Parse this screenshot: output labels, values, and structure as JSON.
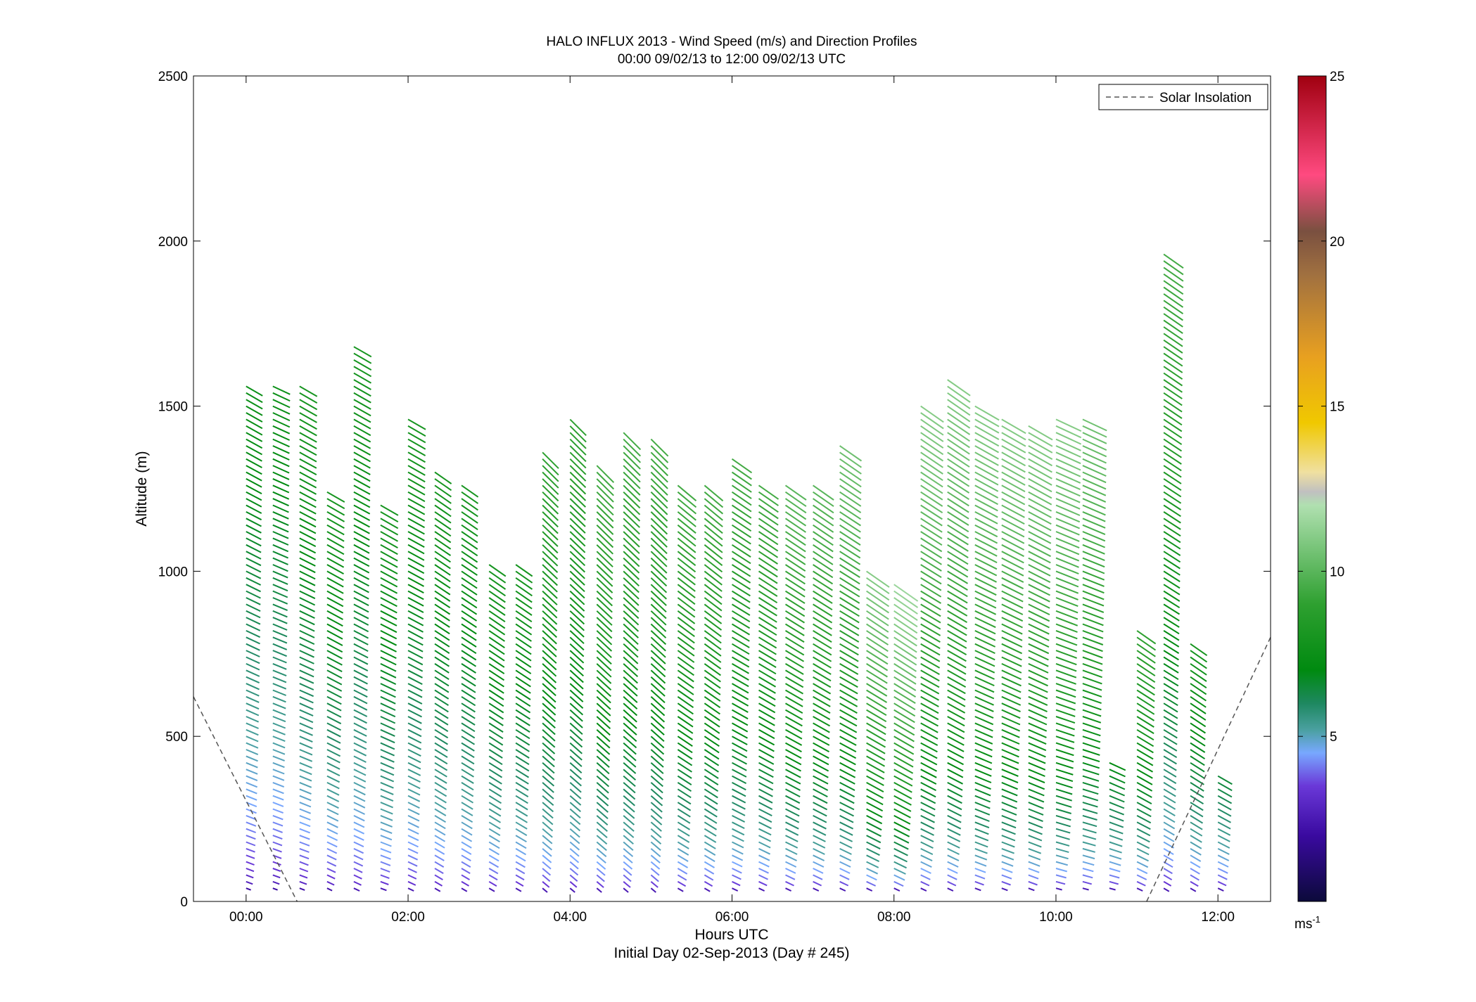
{
  "chart_data": {
    "type": "quiver",
    "title": "HALO INFLUX 2013 - Wind Speed (m/s) and Direction Profiles",
    "subtitle": "00:00 09/02/13 to 12:00 09/02/13  UTC",
    "xlabel": "Hours UTC",
    "xlabel2": "Initial Day 02-Sep-2013 (Day # 245)",
    "ylabel": "Altitude (m)",
    "xlim": [
      -0.65,
      12.65
    ],
    "ylim": [
      0,
      2500
    ],
    "x_ticks": [
      0,
      2,
      4,
      6,
      8,
      10,
      12
    ],
    "x_tick_labels": [
      "00:00",
      "02:00",
      "04:00",
      "06:00",
      "08:00",
      "10:00",
      "12:00"
    ],
    "y_ticks": [
      0,
      500,
      1000,
      1500,
      2000,
      2500
    ],
    "y_tick_labels": [
      "0",
      "500",
      "1000",
      "1500",
      "2000",
      "2500"
    ],
    "grid": false,
    "legend": {
      "position": "top-right",
      "entries": [
        {
          "name": "Solar Insolation",
          "style": "dashed",
          "color": "#555555"
        }
      ]
    },
    "colorbar": {
      "range": [
        0,
        25
      ],
      "ticks": [
        5,
        10,
        15,
        20,
        25
      ],
      "tick_labels": [
        "5",
        "10",
        "15",
        "20",
        "25"
      ],
      "unit_label": "ms",
      "unit_exponent": "-1",
      "stops": [
        {
          "v": 0,
          "c": "#0b0a3a"
        },
        {
          "v": 2,
          "c": "#3a0aa0"
        },
        {
          "v": 3.5,
          "c": "#6a38d8"
        },
        {
          "v": 4.5,
          "c": "#78a8ff"
        },
        {
          "v": 5.2,
          "c": "#4aa0a0"
        },
        {
          "v": 6,
          "c": "#1e8860"
        },
        {
          "v": 7,
          "c": "#008a10"
        },
        {
          "v": 9,
          "c": "#2ea030"
        },
        {
          "v": 12,
          "c": "#b0e0b0"
        },
        {
          "v": 12.4,
          "c": "#c0c0c0"
        },
        {
          "v": 13,
          "c": "#f0e0a0"
        },
        {
          "v": 14.5,
          "c": "#f0c800"
        },
        {
          "v": 16.5,
          "c": "#e8a020"
        },
        {
          "v": 19,
          "c": "#a07040"
        },
        {
          "v": 20.3,
          "c": "#7a5040"
        },
        {
          "v": 22,
          "c": "#ff4a80"
        },
        {
          "v": 25,
          "c": "#a00010"
        }
      ]
    },
    "solar_insolation": {
      "left": {
        "x": [
          -0.65,
          0.63
        ],
        "y": [
          620,
          0
        ]
      },
      "right": {
        "x": [
          11.12,
          12.65
        ],
        "y": [
          0,
          800
        ]
      }
    },
    "profiles": [
      {
        "t": 0.0,
        "z": [
          40,
          1560
        ],
        "speed": [
          2.0,
          7.5
        ],
        "dir": [
          290,
          300
        ]
      },
      {
        "t": 0.33,
        "z": [
          40,
          1560
        ],
        "speed": [
          2.0,
          7.5
        ],
        "dir": [
          290,
          295
        ]
      },
      {
        "t": 0.66,
        "z": [
          40,
          1560
        ],
        "speed": [
          2.2,
          8.0
        ],
        "dir": [
          290,
          300
        ]
      },
      {
        "t": 1.0,
        "z": [
          40,
          1250
        ],
        "speed": [
          2.2,
          8.0
        ],
        "dir": [
          295,
          300
        ]
      },
      {
        "t": 1.33,
        "z": [
          40,
          1690
        ],
        "speed": [
          2.5,
          8.0
        ],
        "dir": [
          295,
          300
        ]
      },
      {
        "t": 1.66,
        "z": [
          40,
          1200
        ],
        "speed": [
          2.5,
          8.0
        ],
        "dir": [
          290,
          300
        ]
      },
      {
        "t": 2.0,
        "z": [
          40,
          1460
        ],
        "speed": [
          2.5,
          8.0
        ],
        "dir": [
          295,
          300
        ]
      },
      {
        "t": 2.33,
        "z": [
          40,
          1300
        ],
        "speed": [
          2.5,
          8.0
        ],
        "dir": [
          300,
          305
        ]
      },
      {
        "t": 2.66,
        "z": [
          40,
          1260
        ],
        "speed": [
          2.5,
          8.0
        ],
        "dir": [
          300,
          305
        ]
      },
      {
        "t": 3.0,
        "z": [
          40,
          1020
        ],
        "speed": [
          2.5,
          8.0
        ],
        "dir": [
          300,
          305
        ]
      },
      {
        "t": 3.33,
        "z": [
          40,
          1020
        ],
        "speed": [
          2.5,
          8.0
        ],
        "dir": [
          300,
          305
        ]
      },
      {
        "t": 3.66,
        "z": [
          40,
          1370
        ],
        "speed": [
          2.5,
          9.0
        ],
        "dir": [
          310,
          315
        ]
      },
      {
        "t": 4.0,
        "z": [
          40,
          1460
        ],
        "speed": [
          2.5,
          9.0
        ],
        "dir": [
          310,
          315
        ]
      },
      {
        "t": 4.33,
        "z": [
          40,
          1330
        ],
        "speed": [
          2.5,
          9.5
        ],
        "dir": [
          310,
          315
        ]
      },
      {
        "t": 4.66,
        "z": [
          40,
          1420
        ],
        "speed": [
          2.5,
          9.5
        ],
        "dir": [
          310,
          315
        ]
      },
      {
        "t": 5.0,
        "z": [
          40,
          1400
        ],
        "speed": [
          2.5,
          9.5
        ],
        "dir": [
          310,
          315
        ]
      },
      {
        "t": 5.33,
        "z": [
          40,
          1270
        ],
        "speed": [
          2.5,
          9.5
        ],
        "dir": [
          300,
          310
        ]
      },
      {
        "t": 5.66,
        "z": [
          40,
          1260
        ],
        "speed": [
          2.5,
          9.5
        ],
        "dir": [
          300,
          310
        ]
      },
      {
        "t": 6.0,
        "z": [
          40,
          1350
        ],
        "speed": [
          2.5,
          9.5
        ],
        "dir": [
          295,
          305
        ]
      },
      {
        "t": 6.33,
        "z": [
          40,
          1260
        ],
        "speed": [
          2.5,
          9.5
        ],
        "dir": [
          295,
          305
        ]
      },
      {
        "t": 6.66,
        "z": [
          40,
          1260
        ],
        "speed": [
          2.5,
          10.0
        ],
        "dir": [
          295,
          305
        ]
      },
      {
        "t": 7.0,
        "z": [
          40,
          1260
        ],
        "speed": [
          2.5,
          10.0
        ],
        "dir": [
          295,
          305
        ]
      },
      {
        "t": 7.33,
        "z": [
          40,
          1390
        ],
        "speed": [
          2.5,
          10.5
        ],
        "dir": [
          295,
          305
        ]
      },
      {
        "t": 7.66,
        "z": [
          40,
          1000
        ],
        "speed": [
          2.5,
          11.0
        ],
        "dir": [
          295,
          305
        ]
      },
      {
        "t": 8.0,
        "z": [
          40,
          960
        ],
        "speed": [
          2.5,
          11.5
        ],
        "dir": [
          295,
          305
        ]
      },
      {
        "t": 8.33,
        "z": [
          40,
          1500
        ],
        "speed": [
          2.5,
          11.0
        ],
        "dir": [
          295,
          305
        ]
      },
      {
        "t": 8.66,
        "z": [
          40,
          1580
        ],
        "speed": [
          2.5,
          11.0
        ],
        "dir": [
          295,
          305
        ]
      },
      {
        "t": 9.0,
        "z": [
          40,
          1500
        ],
        "speed": [
          2.5,
          11.0
        ],
        "dir": [
          290,
          300
        ]
      },
      {
        "t": 9.33,
        "z": [
          40,
          1460
        ],
        "speed": [
          2.5,
          11.0
        ],
        "dir": [
          290,
          300
        ]
      },
      {
        "t": 9.66,
        "z": [
          40,
          1450
        ],
        "speed": [
          2.5,
          11.0
        ],
        "dir": [
          290,
          300
        ]
      },
      {
        "t": 10.0,
        "z": [
          40,
          1460
        ],
        "speed": [
          2.5,
          11.0
        ],
        "dir": [
          285,
          295
        ]
      },
      {
        "t": 10.33,
        "z": [
          40,
          1460
        ],
        "speed": [
          2.5,
          10.5
        ],
        "dir": [
          285,
          295
        ]
      },
      {
        "t": 10.66,
        "z": [
          40,
          420
        ],
        "speed": [
          2.5,
          7.0
        ],
        "dir": [
          285,
          295
        ]
      },
      {
        "t": 11.0,
        "z": [
          40,
          820
        ],
        "speed": [
          2.5,
          9.0
        ],
        "dir": [
          295,
          305
        ]
      },
      {
        "t": 11.33,
        "z": [
          40,
          1970
        ],
        "speed": [
          2.5,
          9.5
        ],
        "dir": [
          300,
          305
        ]
      },
      {
        "t": 11.66,
        "z": [
          40,
          780
        ],
        "speed": [
          2.5,
          8.0
        ],
        "dir": [
          300,
          305
        ]
      },
      {
        "t": 12.0,
        "z": [
          40,
          380
        ],
        "speed": [
          2.5,
          6.5
        ],
        "dir": [
          295,
          300
        ]
      }
    ]
  }
}
